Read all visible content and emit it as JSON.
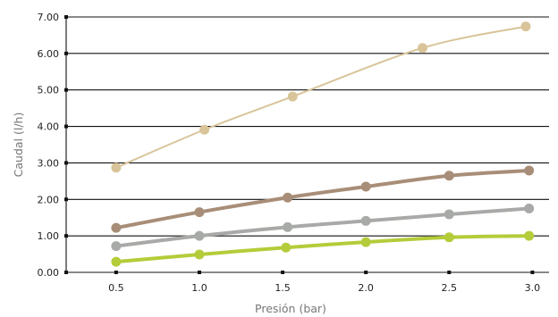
{
  "chart_data": {
    "type": "line",
    "xlabel": "Presión (bar)",
    "ylabel": "Caudal (l/h)",
    "xlim": [
      0.2,
      3.1
    ],
    "ylim": [
      0,
      7
    ],
    "x_ticks": [
      0.5,
      1.0,
      1.5,
      2.0,
      2.5,
      3.0
    ],
    "x_tick_labels": [
      "0.5",
      "1.0",
      "1.5",
      "2.0",
      "2.5",
      "3.0"
    ],
    "y_ticks": [
      0,
      1,
      2,
      3,
      4,
      5,
      6,
      7
    ],
    "y_tick_labels": [
      "0.00",
      "1.00",
      "2.00",
      "3.00",
      "4.00",
      "5.00",
      "6.00",
      "7.00"
    ],
    "grid": "horizontal",
    "legend": "none",
    "series": [
      {
        "color": "#d9c49a",
        "points": [
          [
            0.5,
            2.87
          ],
          [
            1.03,
            3.91
          ],
          [
            1.56,
            4.82
          ],
          [
            2.34,
            6.15
          ],
          [
            2.96,
            6.74
          ]
        ]
      },
      {
        "color": "#a88e78",
        "points": [
          [
            0.5,
            1.22
          ],
          [
            1.0,
            1.65
          ],
          [
            1.53,
            2.05
          ],
          [
            2.0,
            2.35
          ],
          [
            2.5,
            2.65
          ],
          [
            2.98,
            2.79
          ]
        ]
      },
      {
        "color": "#a8aaa7",
        "points": [
          [
            0.5,
            0.72
          ],
          [
            1.0,
            1.0
          ],
          [
            1.53,
            1.24
          ],
          [
            2.0,
            1.41
          ],
          [
            2.5,
            1.59
          ],
          [
            2.98,
            1.75
          ]
        ]
      },
      {
        "color": "#b5cc3a",
        "points": [
          [
            0.5,
            0.29
          ],
          [
            1.0,
            0.49
          ],
          [
            1.52,
            0.68
          ],
          [
            2.0,
            0.83
          ],
          [
            2.5,
            0.96
          ],
          [
            2.98,
            1.0
          ]
        ]
      }
    ]
  }
}
